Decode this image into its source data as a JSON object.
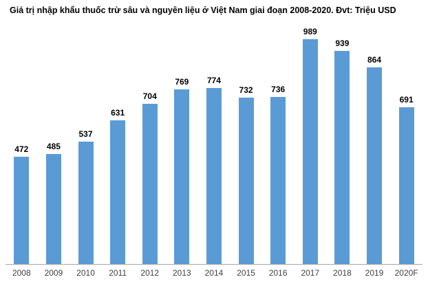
{
  "chart_data": {
    "type": "bar",
    "title": "Giá trị nhập khẩu thuốc trừ sâu và nguyên liệu ở Việt Nam giai đoạn 2008-2020. Đvt: Triệu USD",
    "unit": "Triệu USD",
    "categories": [
      "2008",
      "2009",
      "2010",
      "2011",
      "2012",
      "2013",
      "2014",
      "2015",
      "2016",
      "2017",
      "2018",
      "2019",
      "2020F"
    ],
    "values": [
      472,
      485,
      537,
      631,
      704,
      769,
      774,
      732,
      736,
      989,
      939,
      864,
      691
    ],
    "xlabel": "",
    "ylabel": "",
    "ylim": [
      0,
      989
    ],
    "grid": false,
    "legend_position": "none",
    "data_labels_shown": true,
    "bar_color": "#5b9bd5",
    "axis_line_color": "#a6a6a6",
    "data_label_color": "#000000",
    "tick_label_color": "#404040",
    "background_color": "#ffffff"
  }
}
